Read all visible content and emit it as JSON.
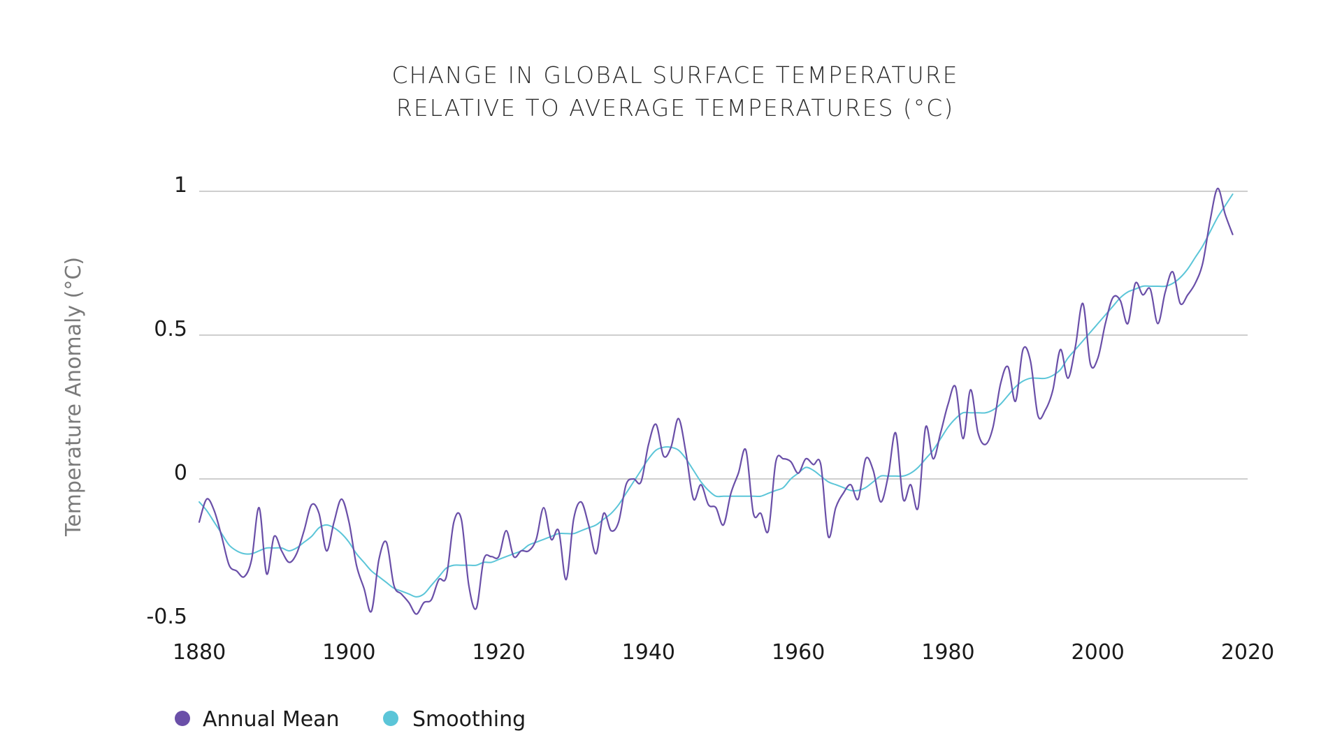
{
  "chart_data": {
    "type": "line",
    "title_line1": "CHANGE IN GLOBAL SURFACE TEMPERATURE",
    "title_line2": "RELATIVE TO AVERAGE TEMPERATURES (°C)",
    "ylabel": "Temperature Anomaly (°C)",
    "xlabel": "",
    "xlim": [
      1880,
      2020
    ],
    "ylim": [
      -0.5,
      1
    ],
    "x_ticks": [
      1880,
      1900,
      1920,
      1940,
      1960,
      1980,
      2000,
      2020
    ],
    "x_tick_labels": [
      "1880",
      "1900",
      "1920",
      "1940",
      "1960",
      "1980",
      "2000",
      "2020"
    ],
    "y_ticks": [
      1,
      0.5,
      0,
      -0.5
    ],
    "y_tick_labels": [
      "1",
      "0.5",
      "0",
      "-0.5"
    ],
    "grid": "horizontal",
    "legend_position": "bottom-left",
    "series": [
      {
        "name": "Annual Mean",
        "color": "#6a4fa8",
        "x": [
          1880,
          1881,
          1882,
          1883,
          1884,
          1885,
          1886,
          1887,
          1888,
          1889,
          1890,
          1891,
          1892,
          1893,
          1894,
          1895,
          1896,
          1897,
          1898,
          1899,
          1900,
          1901,
          1902,
          1903,
          1904,
          1905,
          1906,
          1907,
          1908,
          1909,
          1910,
          1911,
          1912,
          1913,
          1914,
          1915,
          1916,
          1917,
          1918,
          1919,
          1920,
          1921,
          1922,
          1923,
          1924,
          1925,
          1926,
          1927,
          1928,
          1929,
          1930,
          1931,
          1932,
          1933,
          1934,
          1935,
          1936,
          1937,
          1938,
          1939,
          1940,
          1941,
          1942,
          1943,
          1944,
          1945,
          1946,
          1947,
          1948,
          1949,
          1950,
          1951,
          1952,
          1953,
          1954,
          1955,
          1956,
          1957,
          1958,
          1959,
          1960,
          1961,
          1962,
          1963,
          1964,
          1965,
          1966,
          1967,
          1968,
          1969,
          1970,
          1971,
          1972,
          1973,
          1974,
          1975,
          1976,
          1977,
          1978,
          1979,
          1980,
          1981,
          1982,
          1983,
          1984,
          1985,
          1986,
          1987,
          1988,
          1989,
          1990,
          1991,
          1992,
          1993,
          1994,
          1995,
          1996,
          1997,
          1998,
          1999,
          2000,
          2001,
          2002,
          2003,
          2004,
          2005,
          2006,
          2007,
          2008,
          2009,
          2010,
          2011,
          2012,
          2013,
          2014,
          2015,
          2016,
          2017,
          2018
        ],
        "values": [
          -0.15,
          -0.07,
          -0.11,
          -0.2,
          -0.3,
          -0.32,
          -0.34,
          -0.28,
          -0.1,
          -0.33,
          -0.2,
          -0.25,
          -0.29,
          -0.26,
          -0.18,
          -0.09,
          -0.12,
          -0.25,
          -0.15,
          -0.07,
          -0.15,
          -0.3,
          -0.38,
          -0.46,
          -0.28,
          -0.22,
          -0.37,
          -0.4,
          -0.43,
          -0.47,
          -0.43,
          -0.42,
          -0.35,
          -0.34,
          -0.15,
          -0.14,
          -0.37,
          -0.45,
          -0.28,
          -0.27,
          -0.27,
          -0.18,
          -0.27,
          -0.25,
          -0.25,
          -0.21,
          -0.1,
          -0.21,
          -0.18,
          -0.35,
          -0.14,
          -0.08,
          -0.16,
          -0.26,
          -0.12,
          -0.18,
          -0.15,
          -0.02,
          0.0,
          -0.01,
          0.12,
          0.19,
          0.08,
          0.11,
          0.21,
          0.09,
          -0.07,
          -0.02,
          -0.09,
          -0.1,
          -0.16,
          -0.05,
          0.02,
          0.1,
          -0.12,
          -0.12,
          -0.18,
          0.06,
          0.07,
          0.06,
          0.02,
          0.07,
          0.05,
          0.05,
          -0.2,
          -0.1,
          -0.05,
          -0.02,
          -0.07,
          0.07,
          0.03,
          -0.08,
          0.01,
          0.16,
          -0.07,
          -0.02,
          -0.1,
          0.18,
          0.07,
          0.16,
          0.26,
          0.32,
          0.14,
          0.31,
          0.16,
          0.12,
          0.18,
          0.33,
          0.39,
          0.27,
          0.45,
          0.41,
          0.22,
          0.24,
          0.31,
          0.45,
          0.35,
          0.46,
          0.61,
          0.4,
          0.42,
          0.54,
          0.63,
          0.62,
          0.54,
          0.68,
          0.64,
          0.66,
          0.54,
          0.65,
          0.72,
          0.61,
          0.64,
          0.68,
          0.75,
          0.9,
          1.01,
          0.92,
          0.85
        ]
      },
      {
        "name": "Smoothing",
        "color": "#5bc5d8",
        "x": [
          1880,
          1881,
          1882,
          1883,
          1884,
          1885,
          1886,
          1887,
          1888,
          1889,
          1890,
          1891,
          1892,
          1893,
          1894,
          1895,
          1896,
          1897,
          1898,
          1899,
          1900,
          1901,
          1902,
          1903,
          1904,
          1905,
          1906,
          1907,
          1908,
          1909,
          1910,
          1911,
          1912,
          1913,
          1914,
          1915,
          1916,
          1917,
          1918,
          1919,
          1920,
          1921,
          1922,
          1923,
          1924,
          1925,
          1926,
          1927,
          1928,
          1929,
          1930,
          1931,
          1932,
          1933,
          1934,
          1935,
          1936,
          1937,
          1938,
          1939,
          1940,
          1941,
          1942,
          1943,
          1944,
          1945,
          1946,
          1947,
          1948,
          1949,
          1950,
          1951,
          1952,
          1953,
          1954,
          1955,
          1956,
          1957,
          1958,
          1959,
          1960,
          1961,
          1962,
          1963,
          1964,
          1965,
          1966,
          1967,
          1968,
          1969,
          1970,
          1971,
          1972,
          1973,
          1974,
          1975,
          1976,
          1977,
          1978,
          1979,
          1980,
          1981,
          1982,
          1983,
          1984,
          1985,
          1986,
          1987,
          1988,
          1989,
          1990,
          1991,
          1992,
          1993,
          1994,
          1995,
          1996,
          1997,
          1998,
          1999,
          2000,
          2001,
          2002,
          2003,
          2004,
          2005,
          2006,
          2007,
          2008,
          2009,
          2010,
          2011,
          2012,
          2013,
          2014,
          2015,
          2016,
          2017,
          2018
        ],
        "values": [
          -0.08,
          -0.11,
          -0.15,
          -0.19,
          -0.23,
          -0.25,
          -0.26,
          -0.26,
          -0.25,
          -0.24,
          -0.24,
          -0.24,
          -0.25,
          -0.24,
          -0.22,
          -0.2,
          -0.17,
          -0.16,
          -0.17,
          -0.19,
          -0.22,
          -0.26,
          -0.29,
          -0.32,
          -0.34,
          -0.36,
          -0.38,
          -0.39,
          -0.4,
          -0.41,
          -0.4,
          -0.37,
          -0.34,
          -0.31,
          -0.3,
          -0.3,
          -0.3,
          -0.3,
          -0.29,
          -0.29,
          -0.28,
          -0.27,
          -0.26,
          -0.25,
          -0.23,
          -0.22,
          -0.21,
          -0.2,
          -0.19,
          -0.19,
          -0.19,
          -0.18,
          -0.17,
          -0.16,
          -0.14,
          -0.12,
          -0.09,
          -0.05,
          -0.01,
          0.03,
          0.07,
          0.1,
          0.11,
          0.11,
          0.1,
          0.07,
          0.03,
          -0.01,
          -0.04,
          -0.06,
          -0.06,
          -0.06,
          -0.06,
          -0.06,
          -0.06,
          -0.06,
          -0.05,
          -0.04,
          -0.03,
          0.0,
          0.02,
          0.04,
          0.03,
          0.01,
          -0.01,
          -0.02,
          -0.03,
          -0.04,
          -0.04,
          -0.03,
          -0.01,
          0.01,
          0.01,
          0.01,
          0.01,
          0.02,
          0.04,
          0.07,
          0.1,
          0.14,
          0.18,
          0.21,
          0.23,
          0.23,
          0.23,
          0.23,
          0.24,
          0.26,
          0.29,
          0.32,
          0.34,
          0.35,
          0.35,
          0.35,
          0.36,
          0.38,
          0.42,
          0.45,
          0.48,
          0.51,
          0.54,
          0.57,
          0.6,
          0.63,
          0.65,
          0.66,
          0.67,
          0.67,
          0.67,
          0.67,
          0.68,
          0.7,
          0.73,
          0.77,
          0.81,
          0.86,
          0.91,
          0.95,
          0.99
        ]
      }
    ]
  }
}
